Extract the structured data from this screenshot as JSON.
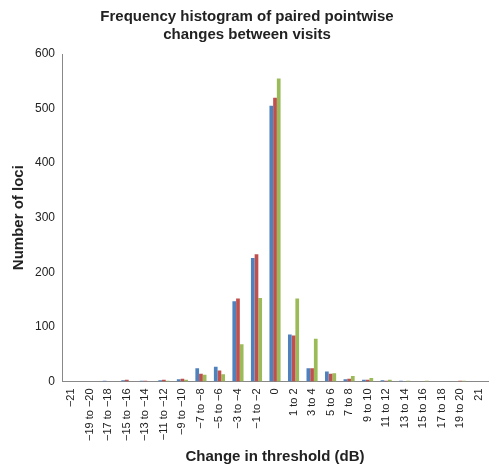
{
  "chart_data": {
    "type": "bar",
    "title": [
      "Frequency histogram of paired pointwise",
      "changes between visits"
    ],
    "x_label": "Change in threshold (dB)",
    "y_label": "Number of loci",
    "categories": [
      "−21",
      "−19 to −20",
      "−17 to −18",
      "−15 to −16",
      "−13 to −14",
      "−11 to −12",
      "−9 to −10",
      "−7 to −8",
      "−5 to −6",
      "−3 to −4",
      "−1 to −2",
      "0",
      "1 to 2",
      "3 to 4",
      "5 to 6",
      "7 to 8",
      "9 to 10",
      "11 to 12",
      "13 to 14",
      "15 to 16",
      "17 to 18",
      "19 to 20",
      "21"
    ],
    "series": [
      {
        "color": "#4f81bd",
        "values": [
          0,
          0,
          1,
          2,
          1,
          2,
          4,
          24,
          27,
          147,
          226,
          505,
          86,
          24,
          18,
          4,
          3,
          2,
          1,
          0,
          0,
          0,
          0
        ]
      },
      {
        "color": "#c0504d",
        "values": [
          0,
          0,
          0,
          3,
          1,
          3,
          5,
          14,
          20,
          152,
          233,
          520,
          84,
          24,
          14,
          5,
          3,
          1,
          0,
          0,
          0,
          1,
          0
        ]
      },
      {
        "color": "#9bbb59",
        "values": [
          0,
          0,
          0,
          0,
          0,
          1,
          3,
          12,
          13,
          68,
          153,
          555,
          152,
          78,
          15,
          10,
          6,
          3,
          1,
          1,
          0,
          1,
          0
        ]
      }
    ],
    "ylim": [
      0,
      600
    ],
    "yticks": [
      0,
      100,
      200,
      300,
      400,
      500,
      600
    ],
    "grid": false
  }
}
